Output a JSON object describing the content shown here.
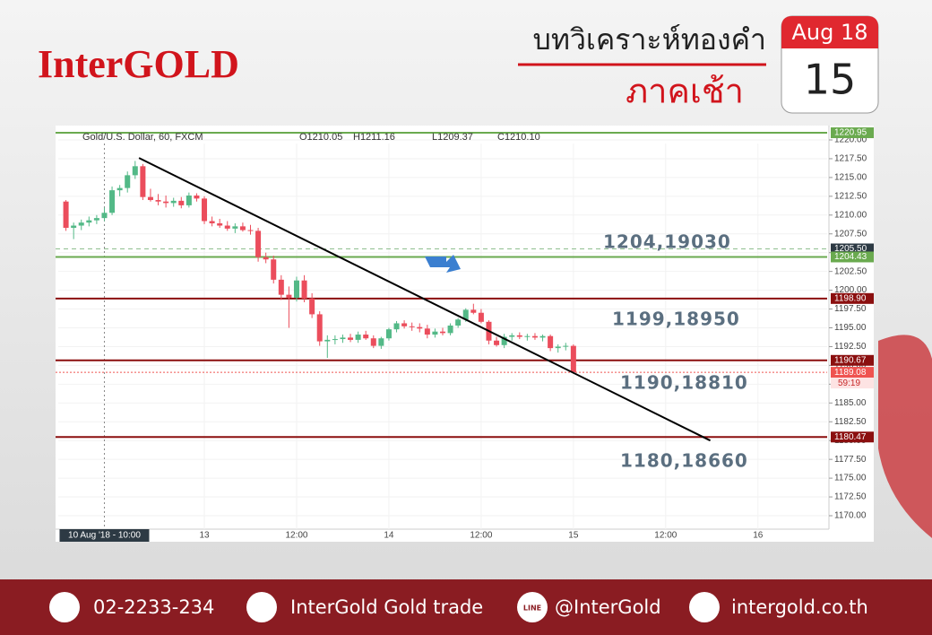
{
  "header": {
    "brand": "InterGOLD",
    "title": "บทวิเคราะห์ทองคำ",
    "subtitle": "ภาคเช้า",
    "calendar_month": "Aug 18",
    "calendar_day": "15"
  },
  "chart_data": {
    "type": "candlestick",
    "title": "Gold/U.S. Dollar, 60, FXCM",
    "legend": [
      "O1210.05",
      "H1211.16",
      "L1209.37",
      "C1210.10"
    ],
    "up_color": "#53b987",
    "down_color": "#eb4d5c",
    "xlim": [
      -1,
      99
    ],
    "ylim": [
      1168.45,
      1221.55
    ],
    "xticks": [
      {
        "value": 5,
        "label": "10 Aug '18 - 10:00"
      },
      {
        "value": 18,
        "label": "13"
      },
      {
        "value": 30,
        "label": "12:00"
      },
      {
        "value": 42,
        "label": "14"
      },
      {
        "value": 54,
        "label": "12:00"
      },
      {
        "value": 66,
        "label": "15"
      },
      {
        "value": 78,
        "label": "12:00"
      },
      {
        "value": 90,
        "label": "16"
      }
    ],
    "yticks": [
      {
        "value": 1170,
        "label": "1170.00"
      },
      {
        "value": 1172.5,
        "label": "1172.50"
      },
      {
        "value": 1175,
        "label": "1175.00"
      },
      {
        "value": 1177.5,
        "label": "1177.50"
      },
      {
        "value": 1180,
        "label": "1180.00"
      },
      {
        "value": 1182.5,
        "label": "1182.50"
      },
      {
        "value": 1185,
        "label": "1185.00"
      },
      {
        "value": 1187.5,
        "label": "1187.50"
      },
      {
        "value": 1190,
        "label": "1190.00"
      },
      {
        "value": 1192.5,
        "label": "1192.50"
      },
      {
        "value": 1195,
        "label": "1195.00"
      },
      {
        "value": 1197.5,
        "label": "1197.50"
      },
      {
        "value": 1200,
        "label": "1200.00"
      },
      {
        "value": 1202.5,
        "label": "1202.50"
      },
      {
        "value": 1205,
        "label": "1205.00"
      },
      {
        "value": 1207.5,
        "label": "1207.50"
      },
      {
        "value": 1210,
        "label": "1210.00"
      },
      {
        "value": 1212.5,
        "label": "1212.50"
      },
      {
        "value": 1215,
        "label": "1215.00"
      },
      {
        "value": 1217.5,
        "label": "1217.50"
      },
      {
        "value": 1220,
        "label": "1220.00"
      }
    ],
    "candles": [
      [
        1211.8,
        1212.0,
        1207.9,
        1208.3
      ],
      [
        1208.3,
        1209.0,
        1206.8,
        1208.6
      ],
      [
        1208.6,
        1209.4,
        1208.0,
        1209.0
      ],
      [
        1209.0,
        1209.8,
        1208.5,
        1209.3
      ],
      [
        1209.3,
        1210.0,
        1208.8,
        1209.6
      ],
      [
        1209.6,
        1211.0,
        1209.2,
        1210.3
      ],
      [
        1210.3,
        1213.8,
        1210.0,
        1213.3
      ],
      [
        1213.3,
        1214.0,
        1212.5,
        1213.6
      ],
      [
        1213.6,
        1215.8,
        1213.0,
        1215.3
      ],
      [
        1215.3,
        1217.2,
        1214.8,
        1216.5
      ],
      [
        1216.5,
        1216.8,
        1212.0,
        1212.4
      ],
      [
        1212.4,
        1213.5,
        1211.8,
        1212.0
      ],
      [
        1212.0,
        1212.8,
        1211.3,
        1211.8
      ],
      [
        1211.8,
        1212.6,
        1211.0,
        1211.6
      ],
      [
        1211.6,
        1212.3,
        1211.1,
        1211.9
      ],
      [
        1211.9,
        1212.4,
        1210.9,
        1211.3
      ],
      [
        1211.3,
        1213.0,
        1211.0,
        1212.6
      ],
      [
        1212.6,
        1212.9,
        1211.8,
        1212.2
      ],
      [
        1212.2,
        1212.5,
        1208.8,
        1209.2
      ],
      [
        1209.2,
        1209.8,
        1208.5,
        1208.9
      ],
      [
        1208.9,
        1209.5,
        1208.3,
        1208.6
      ],
      [
        1208.6,
        1209.2,
        1207.9,
        1208.2
      ],
      [
        1208.2,
        1208.9,
        1207.6,
        1208.5
      ],
      [
        1208.5,
        1209.0,
        1207.8,
        1208.0
      ],
      [
        1208.0,
        1208.7,
        1207.4,
        1207.9
      ],
      [
        1207.9,
        1208.3,
        1203.8,
        1204.4
      ],
      [
        1204.4,
        1205.0,
        1203.6,
        1204.1
      ],
      [
        1204.1,
        1204.6,
        1200.9,
        1201.4
      ],
      [
        1201.4,
        1202.0,
        1198.7,
        1199.4
      ],
      [
        1199.4,
        1200.5,
        1195.0,
        1199.0
      ],
      [
        1199.0,
        1201.8,
        1198.5,
        1201.3
      ],
      [
        1201.3,
        1202.0,
        1198.4,
        1198.9
      ],
      [
        1198.9,
        1199.6,
        1196.3,
        1196.8
      ],
      [
        1196.8,
        1197.2,
        1192.6,
        1193.2
      ],
      [
        1193.2,
        1194.0,
        1191.0,
        1193.4
      ],
      [
        1193.4,
        1194.0,
        1192.8,
        1193.5
      ],
      [
        1193.5,
        1194.1,
        1193.0,
        1193.7
      ],
      [
        1193.7,
        1194.2,
        1193.1,
        1193.4
      ],
      [
        1193.4,
        1194.5,
        1193.0,
        1194.1
      ],
      [
        1194.1,
        1194.6,
        1193.4,
        1193.6
      ],
      [
        1193.6,
        1194.0,
        1192.3,
        1192.6
      ],
      [
        1192.6,
        1193.8,
        1192.2,
        1193.6
      ],
      [
        1193.6,
        1195.0,
        1193.3,
        1194.8
      ],
      [
        1194.8,
        1195.9,
        1194.4,
        1195.6
      ],
      [
        1195.6,
        1196.0,
        1194.9,
        1195.2
      ],
      [
        1195.2,
        1195.7,
        1194.6,
        1195.1
      ],
      [
        1195.1,
        1195.6,
        1194.4,
        1194.9
      ],
      [
        1194.9,
        1195.4,
        1193.6,
        1194.1
      ],
      [
        1194.1,
        1194.9,
        1193.7,
        1194.5
      ],
      [
        1194.5,
        1195.0,
        1194.0,
        1194.3
      ],
      [
        1194.3,
        1195.6,
        1194.0,
        1195.3
      ],
      [
        1195.3,
        1196.3,
        1195.0,
        1196.1
      ],
      [
        1196.1,
        1197.6,
        1195.8,
        1197.4
      ],
      [
        1197.4,
        1198.2,
        1196.8,
        1197.0
      ],
      [
        1197.0,
        1197.5,
        1195.6,
        1195.8
      ],
      [
        1195.8,
        1196.0,
        1192.8,
        1193.3
      ],
      [
        1193.3,
        1193.8,
        1192.5,
        1192.7
      ],
      [
        1192.7,
        1194.2,
        1192.3,
        1193.8
      ],
      [
        1193.8,
        1194.3,
        1193.3,
        1194.0
      ],
      [
        1194.0,
        1194.4,
        1193.5,
        1193.8
      ],
      [
        1193.8,
        1194.2,
        1193.3,
        1193.9
      ],
      [
        1193.9,
        1194.3,
        1193.4,
        1193.7
      ],
      [
        1193.7,
        1194.1,
        1193.2,
        1193.9
      ],
      [
        1193.9,
        1194.1,
        1191.9,
        1192.3
      ],
      [
        1192.3,
        1192.8,
        1191.7,
        1192.5
      ],
      [
        1192.5,
        1193.0,
        1192.0,
        1192.6
      ],
      [
        1192.6,
        1192.8,
        1188.9,
        1189.1
      ]
    ],
    "levels": [
      {
        "value": 1220.95,
        "label": "1220.95",
        "color": "#6aaa4f",
        "style": "solid"
      },
      {
        "value": 1205.5,
        "label": "1205.50",
        "color": "#2d3a44",
        "style": "dashed"
      },
      {
        "value": 1204.43,
        "label": "1204.43",
        "color": "#6aaa4f",
        "style": "solid"
      },
      {
        "value": 1198.9,
        "label": "1198.90",
        "color": "#8b0f0f",
        "style": "solid"
      },
      {
        "value": 1190.67,
        "label": "1190.67",
        "color": "#8b0f0f",
        "style": "solid"
      },
      {
        "value": 1189.08,
        "label": "1189.08",
        "color": "#ef5350",
        "style": "dotted"
      },
      {
        "value": 1180.47,
        "label": "1180.47",
        "color": "#8b0f0f",
        "style": "solid"
      }
    ],
    "countdown": "59:19",
    "trendline": {
      "start": [
        9.5,
        1217.6
      ],
      "end": [
        83.8,
        1180.0
      ]
    },
    "annotations": [
      "1204,19030",
      "1199,18950",
      "1190,18810",
      "1180,18660"
    ]
  },
  "footer": {
    "phone": "02-2233-234",
    "facebook": "InterGold Gold trade",
    "line_badge": "LINE",
    "line": "@InterGold",
    "website": "intergold.co.th"
  }
}
